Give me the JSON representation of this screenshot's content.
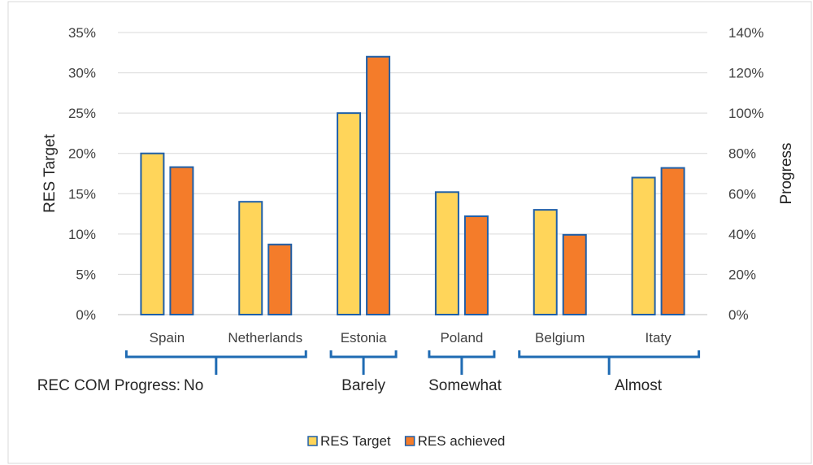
{
  "chart_data": {
    "type": "bar",
    "categories": [
      "Spain",
      "Netherlands",
      "Estonia",
      "Poland",
      "Belgium",
      "Itaty"
    ],
    "series": [
      {
        "name": "RES Target",
        "values": [
          0.2,
          0.14,
          0.25,
          0.152,
          0.13,
          0.17
        ],
        "color": "#FFD55A"
      },
      {
        "name": "RES achieved",
        "values": [
          0.183,
          0.087,
          0.32,
          0.122,
          0.099,
          0.182
        ],
        "color": "#F47C2A"
      }
    ],
    "bar_border_color": "#1F5FA8",
    "bracket_color": "#1F6BB3",
    "ylabel": "RES Target",
    "y2label": "Progress",
    "ylim": [
      0,
      0.35
    ],
    "y2lim": [
      0,
      1.4
    ],
    "yticks": [
      "0%",
      "5%",
      "10%",
      "15%",
      "20%",
      "25%",
      "30%",
      "35%"
    ],
    "y2ticks": [
      "0%",
      "20%",
      "40%",
      "60%",
      "80%",
      "100%",
      "120%",
      "140%"
    ],
    "grid": true,
    "legend_position": "bottom",
    "progress_groups": {
      "prefix": "REC COM Progress:",
      "groups": [
        {
          "label": "No",
          "categories": [
            "Spain",
            "Netherlands"
          ]
        },
        {
          "label": "Barely",
          "categories": [
            "Estonia"
          ]
        },
        {
          "label": "Somewhat",
          "categories": [
            "Poland"
          ]
        },
        {
          "label": "Almost",
          "categories": [
            "Belgium",
            "Itaty"
          ]
        }
      ]
    }
  }
}
